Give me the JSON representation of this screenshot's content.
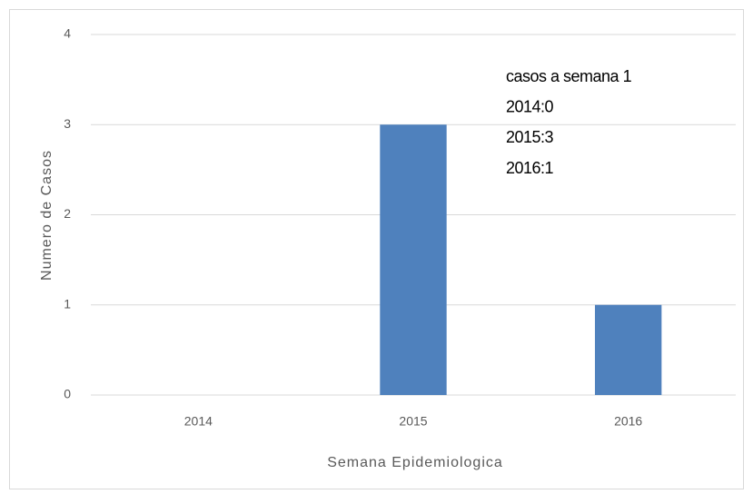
{
  "chart_data": {
    "type": "bar",
    "categories": [
      "2014",
      "2015",
      "2016"
    ],
    "values": [
      0,
      3,
      1
    ],
    "color": "#4f81bd",
    "ylim": [
      0,
      4
    ],
    "yticks": [
      0,
      1,
      2,
      3,
      4
    ],
    "grid": true,
    "x_label": "Semana Epidemiologica",
    "y_label": "Numero de Casos",
    "annotations": [
      "casos a semana 1",
      "2014:0",
      "2015:3",
      "2016:1"
    ]
  }
}
